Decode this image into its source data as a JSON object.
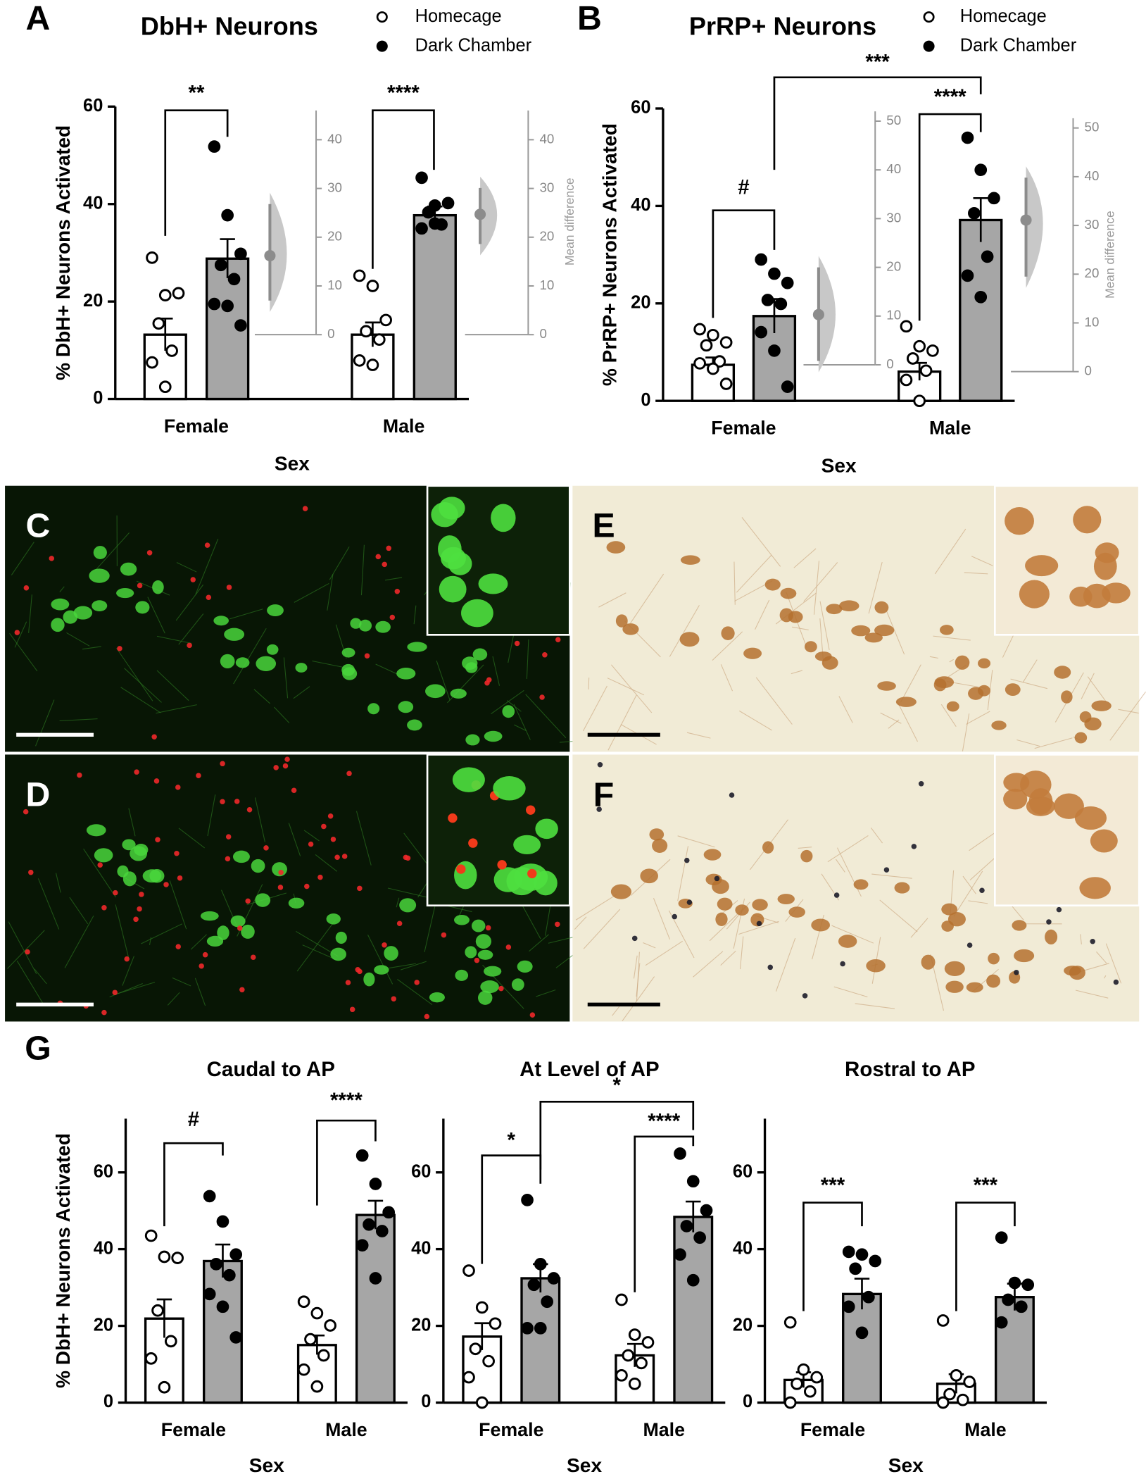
{
  "panel_labels": [
    "A",
    "B",
    "C",
    "D",
    "E",
    "F",
    "G"
  ],
  "chart_data": [
    {
      "type": "bar",
      "title": "DbH+ Neurons",
      "x_label": "Sex",
      "y_label": "% DbH+ Neurons Activated",
      "categories": [
        "Female",
        "Male"
      ],
      "series": [
        {
          "name": "Homecage",
          "color": "#ffffff",
          "marker": "open",
          "values": [
            13.2,
            13.2
          ],
          "errors": [
            3.3,
            2.5
          ],
          "points": [
            [
              29,
              21.3,
              21.7,
              15.5,
              9.9,
              7.5,
              2.5
            ],
            [
              25.3,
              23.2,
              16.2,
              13.9,
              12.2,
              7.9,
              7
            ]
          ]
        },
        {
          "name": "Dark Chamber",
          "color": "#a6a6a6",
          "marker": "filled",
          "values": [
            28.8,
            37.7
          ],
          "errors": [
            4,
            1.8
          ],
          "points": [
            [
              51.8,
              37.7,
              29.8,
              27.5,
              24.6,
              19.5,
              19.1,
              15.1
            ],
            [
              45.4,
              39.7,
              40.2,
              38.3,
              35.8,
              35,
              36
            ]
          ]
        }
      ],
      "ylim": [
        0,
        60
      ],
      "yticks": [
        0,
        20,
        40,
        60
      ],
      "mean_difference": {
        "label": "Mean difference",
        "color": "#8c8c8c",
        "values": [
          16.2,
          24.7
        ],
        "ci_low": [
          7,
          18.6
        ],
        "ci_high": [
          26.8,
          30.1
        ]
      },
      "y2lim": [
        0,
        46
      ],
      "y2ticks": [
        0,
        10,
        20,
        30,
        40
      ],
      "annotations": [
        "**",
        "****"
      ],
      "legend": true
    },
    {
      "type": "bar",
      "title": "PrRP+ Neurons",
      "x_label": "Sex",
      "y_label": "% PrRP+ Neurons Activated",
      "categories": [
        "Female",
        "Male"
      ],
      "series": [
        {
          "name": "Homecage",
          "color": "#ffffff",
          "marker": "open",
          "values": [
            7.4,
            6
          ],
          "errors": [
            1.5,
            1.8
          ],
          "points": [
            [
              14.7,
              13.5,
              12,
              11.4,
              8.1,
              7.7,
              6.6,
              3.5
            ],
            [
              15.3,
              11.2,
              10.3,
              8.7,
              6.2,
              4.3,
              0
            ]
          ]
        },
        {
          "name": "Dark Chamber",
          "color": "#a6a6a6",
          "marker": "filled",
          "values": [
            17.4,
            37.1
          ],
          "errors": [
            3.5,
            4.5
          ],
          "points": [
            [
              29,
              26.1,
              24.2,
              20.7,
              19.9,
              14.1,
              10.3,
              2.9
            ],
            [
              54,
              47.4,
              41.6,
              38.5,
              29.6,
              25.7,
              21.3
            ]
          ]
        }
      ],
      "ylim": [
        0,
        60
      ],
      "yticks": [
        0,
        20,
        40,
        60
      ],
      "mean_difference": {
        "label": "Mean difference",
        "color": "#8c8c8c",
        "values": [
          10.3,
          31.1
        ],
        "ci_low": [
          0.8,
          19.5
        ],
        "ci_high": [
          20,
          39.8
        ]
      },
      "y2lim": [
        0,
        52
      ],
      "y2ticks": [
        0,
        10,
        20,
        30,
        40,
        50
      ],
      "annotations": [
        "#",
        "****",
        "***"
      ],
      "legend": true
    },
    {
      "type": "bar",
      "title": "Caudal to AP",
      "x_label": "Sex",
      "y_label": "% DbH+ Neurons Activated",
      "categories": [
        "Female",
        "Male"
      ],
      "series": [
        {
          "color": "#ffffff",
          "marker": "open",
          "values": [
            21.9,
            15
          ],
          "errors": [
            5,
            2.5
          ],
          "points": [
            [
              43.5,
              38,
              37.7,
              24,
              16,
              11.5,
              4
            ],
            [
              26.3,
              23.3,
              20.1,
              16.5,
              12.3,
              8.6,
              4.2
            ]
          ]
        },
        {
          "color": "#a6a6a6",
          "marker": "filled",
          "values": [
            36.9,
            48.9
          ],
          "errors": [
            4.3,
            3.7
          ],
          "points": [
            [
              53.8,
              47.2,
              38.6,
              36.1,
              33.2,
              28.3,
              25,
              17
            ],
            [
              64.4,
              57,
              49.6,
              46.4,
              44.7,
              41,
              32.4
            ]
          ]
        }
      ],
      "ylim": [
        0,
        74
      ],
      "yticks": [
        0,
        20,
        40,
        60
      ],
      "annotations": [
        "#",
        "****"
      ],
      "legend": false
    },
    {
      "type": "bar",
      "title": "At Level of AP",
      "x_label": "Sex",
      "categories": [
        "Female",
        "Male"
      ],
      "series": [
        {
          "color": "#ffffff",
          "marker": "open",
          "values": [
            17.2,
            12.3
          ],
          "errors": [
            3.5,
            3
          ],
          "points": [
            [
              34.4,
              24.8,
              20.6,
              14,
              10.8,
              6.6,
              0
            ],
            [
              26.8,
              17.7,
              15.7,
              12.3,
              10.3,
              7.1,
              4.9
            ]
          ]
        },
        {
          "color": "#a6a6a6",
          "marker": "filled",
          "values": [
            32.4,
            48.4
          ],
          "errors": [
            3.7,
            4
          ],
          "points": [
            [
              52.8,
              36.1,
              32.4,
              30.7,
              26.3,
              19.4,
              19.4
            ],
            [
              64.9,
              57.7,
              50.1,
              46,
              43,
              38.6,
              31.9
            ]
          ]
        }
      ],
      "ylim": [
        0,
        74
      ],
      "yticks": [
        0,
        20,
        40,
        60
      ],
      "annotations": [
        "*",
        "****",
        "*"
      ],
      "legend": false
    },
    {
      "type": "bar",
      "title": "Rostral to AP",
      "x_label": "Sex",
      "categories": [
        "Female",
        "Male"
      ],
      "series": [
        {
          "color": "#ffffff",
          "marker": "open",
          "values": [
            5.9,
            4.9
          ],
          "errors": [
            2,
            2.5
          ],
          "points": [
            [
              20.9,
              8.6,
              6.6,
              4.9,
              2.9,
              0
            ],
            [
              21.4,
              7.1,
              5.4,
              2.2,
              0.7,
              0
            ]
          ]
        },
        {
          "color": "#a6a6a6",
          "marker": "filled",
          "values": [
            28.3,
            27.5
          ],
          "errors": [
            4,
            3.5
          ],
          "points": [
            [
              39.3,
              38.6,
              36.9,
              34.9,
              27.5,
              25,
              18.2
            ],
            [
              43,
              31.2,
              30.7,
              26.8,
              25,
              20.9
            ]
          ]
        }
      ],
      "ylim": [
        0,
        74
      ],
      "yticks": [
        0,
        20,
        40,
        60
      ],
      "annotations": [
        "***",
        "***"
      ],
      "legend": false
    }
  ]
}
